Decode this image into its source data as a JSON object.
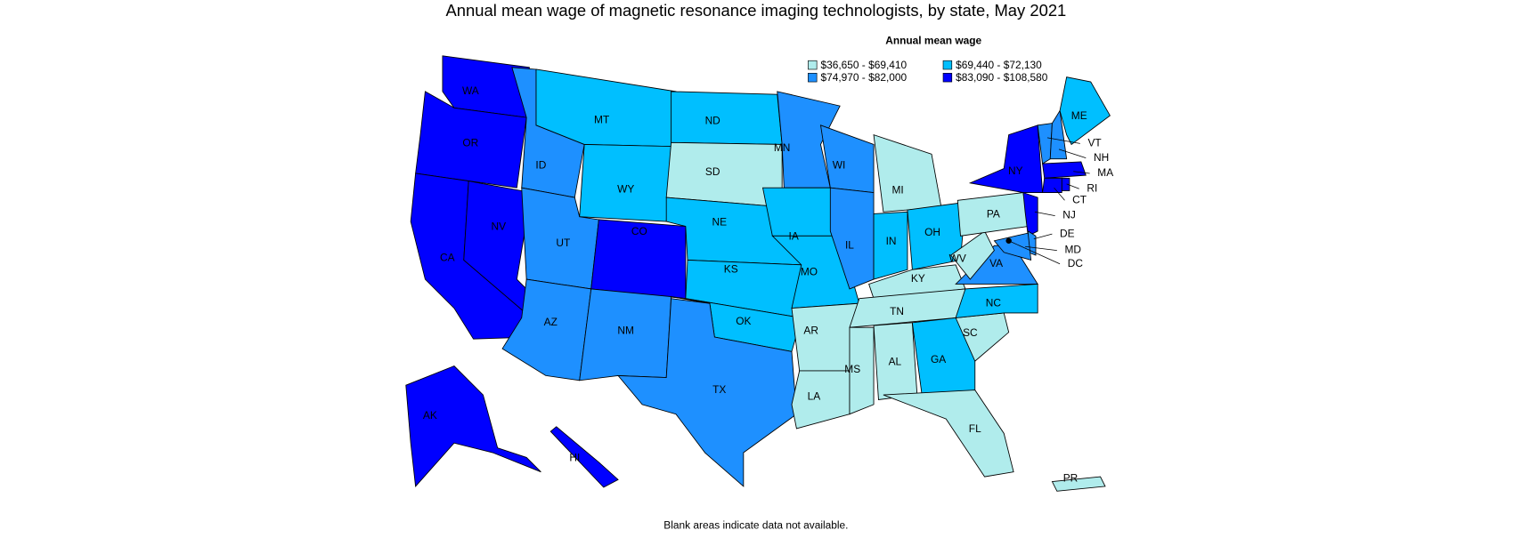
{
  "title": "Annual mean wage of magnetic resonance imaging technologists, by state, May 2021",
  "legend": {
    "title": "Annual mean wage",
    "items": [
      {
        "label": "$36,650 - $69,410",
        "color": "#b0ecec"
      },
      {
        "label": "$69,440 - $72,130",
        "color": "#00bfff"
      },
      {
        "label": "$74,970 - $82,000",
        "color": "#1e90ff"
      },
      {
        "label": "$83,090 - $108,580",
        "color": "#0000ff"
      }
    ]
  },
  "states": [
    {
      "label": "WA",
      "color": "#0000ff"
    },
    {
      "label": "OR",
      "color": "#0000ff"
    },
    {
      "label": "CA",
      "color": "#0000ff"
    },
    {
      "label": "NV",
      "color": "#0000ff"
    },
    {
      "label": "ID",
      "color": "#1e90ff"
    },
    {
      "label": "MT",
      "color": "#00bfff"
    },
    {
      "label": "WY",
      "color": "#00bfff"
    },
    {
      "label": "UT",
      "color": "#1e90ff"
    },
    {
      "label": "CO",
      "color": "#0000ff"
    },
    {
      "label": "AZ",
      "color": "#1e90ff"
    },
    {
      "label": "NM",
      "color": "#1e90ff"
    },
    {
      "label": "ND",
      "color": "#00bfff"
    },
    {
      "label": "SD",
      "color": "#b0ecec"
    },
    {
      "label": "NE",
      "color": "#00bfff"
    },
    {
      "label": "KS",
      "color": "#00bfff"
    },
    {
      "label": "OK",
      "color": "#00bfff"
    },
    {
      "label": "TX",
      "color": "#1e90ff"
    },
    {
      "label": "MN",
      "color": "#1e90ff"
    },
    {
      "label": "IA",
      "color": "#00bfff"
    },
    {
      "label": "MO",
      "color": "#00bfff"
    },
    {
      "label": "AR",
      "color": "#b0ecec"
    },
    {
      "label": "LA",
      "color": "#b0ecec"
    },
    {
      "label": "WI",
      "color": "#1e90ff"
    },
    {
      "label": "IL",
      "color": "#1e90ff"
    },
    {
      "label": "MI",
      "color": "#b0ecec"
    },
    {
      "label": "IN",
      "color": "#00bfff"
    },
    {
      "label": "OH",
      "color": "#00bfff"
    },
    {
      "label": "KY",
      "color": "#b0ecec"
    },
    {
      "label": "TN",
      "color": "#b0ecec"
    },
    {
      "label": "MS",
      "color": "#b0ecec"
    },
    {
      "label": "AL",
      "color": "#b0ecec"
    },
    {
      "label": "GA",
      "color": "#00bfff"
    },
    {
      "label": "FL",
      "color": "#b0ecec"
    },
    {
      "label": "SC",
      "color": "#b0ecec"
    },
    {
      "label": "NC",
      "color": "#00bfff"
    },
    {
      "label": "VA",
      "color": "#1e90ff"
    },
    {
      "label": "WV",
      "color": "#b0ecec"
    },
    {
      "label": "PA",
      "color": "#b0ecec"
    },
    {
      "label": "NY",
      "color": "#0000ff"
    },
    {
      "label": "VT",
      "color": "#1e90ff"
    },
    {
      "label": "NH",
      "color": "#1e90ff"
    },
    {
      "label": "ME",
      "color": "#00bfff"
    },
    {
      "label": "MA",
      "color": "#0000ff"
    },
    {
      "label": "RI",
      "color": "#0000ff"
    },
    {
      "label": "CT",
      "color": "#0000ff"
    },
    {
      "label": "NJ",
      "color": "#0000ff"
    },
    {
      "label": "DE",
      "color": "#1e90ff"
    },
    {
      "label": "MD",
      "color": "#1e90ff"
    },
    {
      "label": "DC",
      "color": "#0000ff"
    },
    {
      "label": "AK",
      "color": "#0000ff"
    },
    {
      "label": "HI",
      "color": "#0000ff"
    },
    {
      "label": "PR",
      "color": "#b0ecec"
    }
  ],
  "footnote": "Blank areas indicate data not available."
}
